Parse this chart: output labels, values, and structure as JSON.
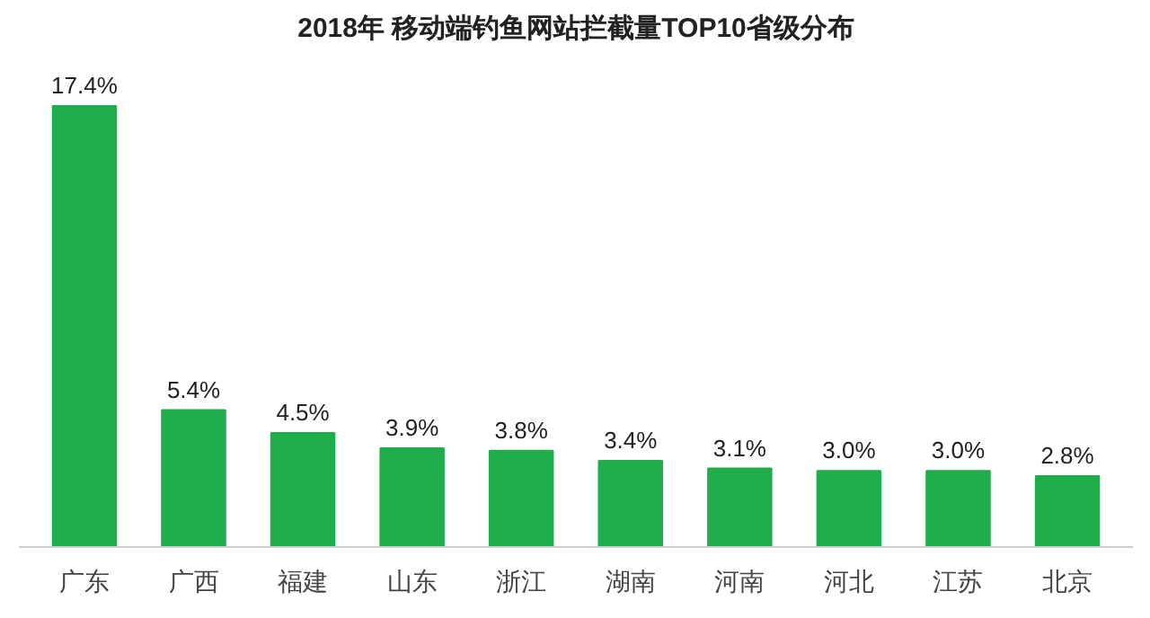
{
  "chart_data": {
    "type": "bar",
    "title": "2018年 移动端钓鱼网站拦截量TOP10省级分布",
    "categories": [
      "广东",
      "广西",
      "福建",
      "山东",
      "浙江",
      "湖南",
      "河南",
      "河北",
      "江苏",
      "北京"
    ],
    "values": [
      17.4,
      5.4,
      4.5,
      3.9,
      3.8,
      3.4,
      3.1,
      3.0,
      3.0,
      2.8
    ],
    "value_labels": [
      "17.4%",
      "5.4%",
      "4.5%",
      "3.9%",
      "3.8%",
      "3.4%",
      "3.1%",
      "3.0%",
      "3.0%",
      "2.8%"
    ],
    "color": "#1fae4b",
    "grid": false
  }
}
